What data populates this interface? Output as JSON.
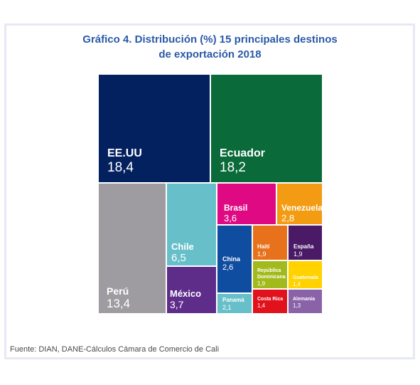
{
  "title": {
    "line1": "Gráfico 4. Distribución (%) 15 principales destinos",
    "line2": "de exportación 2018"
  },
  "source": "Fuente: DIAN, DANE-Cálculos Cámara de Comercio de Cali",
  "chart_data": {
    "type": "treemap",
    "unit": "%",
    "items": [
      {
        "name": "EE.UU",
        "value": 18.4,
        "label": "18,4",
        "color": "#04215f"
      },
      {
        "name": "Ecuador",
        "value": 18.2,
        "label": "18,2",
        "color": "#0a6a3a"
      },
      {
        "name": "Perú",
        "value": 13.4,
        "label": "13,4",
        "color": "#9e9ca0"
      },
      {
        "name": "Chile",
        "value": 6.5,
        "label": "6,5",
        "color": "#67bfc9"
      },
      {
        "name": "México",
        "value": 3.7,
        "label": "3,7",
        "color": "#5e2d8a"
      },
      {
        "name": "Brasil",
        "value": 3.6,
        "label": "3,6",
        "color": "#df0a83"
      },
      {
        "name": "Venezuela",
        "value": 2.8,
        "label": "2,8",
        "color": "#f39b12"
      },
      {
        "name": "China",
        "value": 2.6,
        "label": "2,6",
        "color": "#0f4da1"
      },
      {
        "name": "Haití",
        "value": 1.9,
        "label": "1,9",
        "color": "#e8721c"
      },
      {
        "name": "España",
        "value": 1.9,
        "label": "1,9",
        "color": "#4a1a66"
      },
      {
        "name": "República Dominicana",
        "value": 1.9,
        "label": "1,9",
        "color": "#a3ba1c"
      },
      {
        "name": "Guatemala",
        "value": 1.4,
        "label": "1,4",
        "color": "#ffd200"
      },
      {
        "name": "Panamá",
        "value": 2.1,
        "label": "2,1",
        "color": "#67bfc9"
      },
      {
        "name": "Costa Rica",
        "value": 1.4,
        "label": "1,4",
        "color": "#e2121d"
      },
      {
        "name": "Alemania",
        "value": 1.3,
        "label": "1,3",
        "color": "#8a62a8"
      }
    ]
  }
}
